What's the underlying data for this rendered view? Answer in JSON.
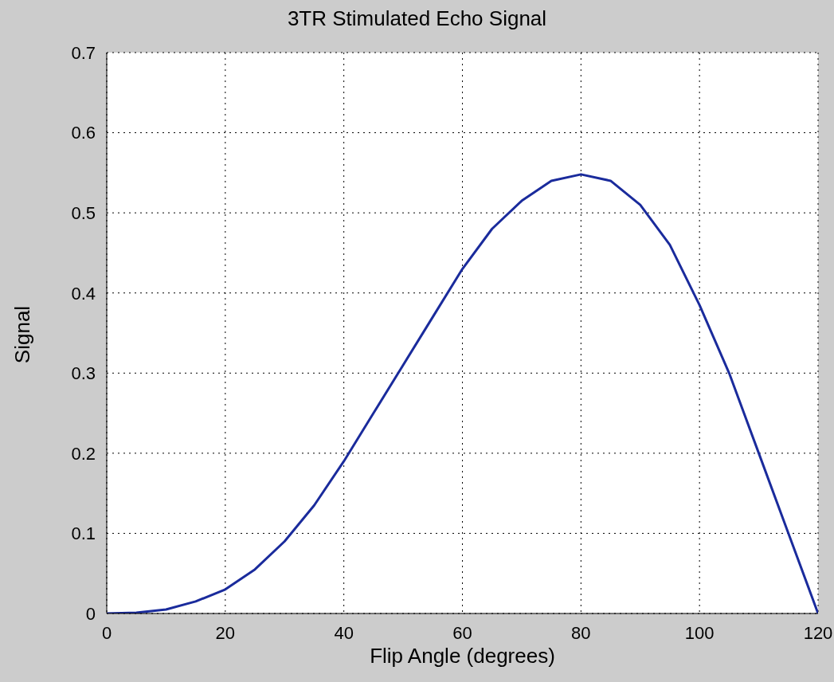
{
  "chart_data": {
    "type": "line",
    "title": "3TR Stimulated Echo Signal",
    "xlabel": "Flip Angle (degrees)",
    "ylabel": "Signal",
    "x": [
      0,
      5,
      10,
      15,
      20,
      25,
      30,
      35,
      40,
      45,
      50,
      55,
      60,
      65,
      70,
      75,
      80,
      85,
      90,
      95,
      100,
      105,
      110,
      115,
      120
    ],
    "series": [
      {
        "color": "#1a2b9c",
        "values": [
          0,
          0.001,
          0.005,
          0.015,
          0.03,
          0.055,
          0.09,
          0.135,
          0.19,
          0.25,
          0.31,
          0.37,
          0.43,
          0.48,
          0.515,
          0.54,
          0.548,
          0.54,
          0.51,
          0.46,
          0.385,
          0.3,
          0.2,
          0.1,
          0
        ]
      }
    ],
    "xlim": [
      0,
      120
    ],
    "xticks": [
      0,
      20,
      40,
      60,
      80,
      100,
      120
    ],
    "ylim": [
      0,
      0.7
    ],
    "yticks": [
      0,
      0.1,
      0.2,
      0.3,
      0.4,
      0.5,
      0.6,
      0.7
    ],
    "grid": true,
    "legend": false,
    "marker": "none",
    "line_style": "solid"
  }
}
